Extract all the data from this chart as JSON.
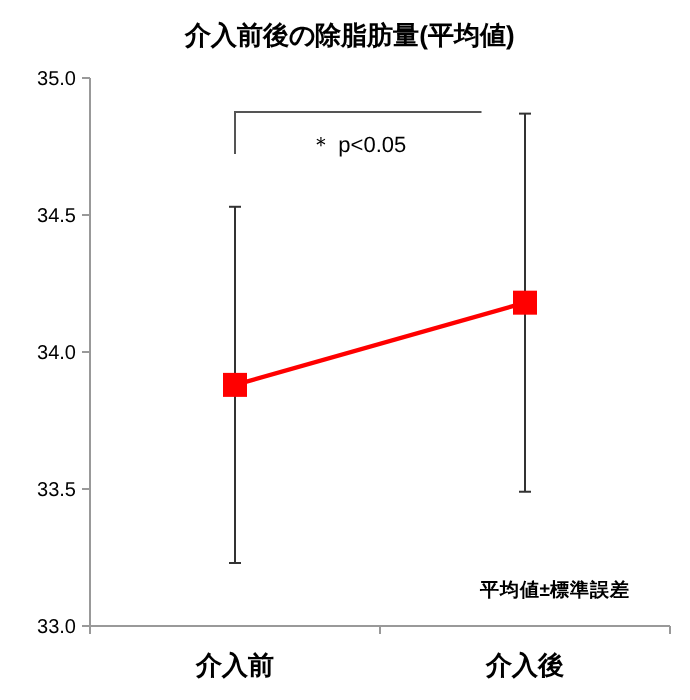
{
  "chart_data": {
    "type": "line",
    "title": "介入前後の除脂肪量(平均値)",
    "categories": [
      "介入前",
      "介入後"
    ],
    "series": [
      {
        "color": "#ff0000",
        "values": [
          33.88,
          34.18
        ],
        "errors": [
          0.65,
          0.69
        ]
      }
    ],
    "marker": "square",
    "line_style": "solid",
    "ylim": [
      33,
      35
    ],
    "yticks": [
      {
        "value": 33,
        "label": "33.0"
      },
      {
        "value": 33.5,
        "label": "33.5"
      },
      {
        "value": 34,
        "label": "34.0"
      },
      {
        "value": 34.5,
        "label": "34.5"
      },
      {
        "value": 35,
        "label": "35.0"
      }
    ],
    "annotations": [
      "＊ p<0.05",
      "平均値±標準誤差"
    ]
  }
}
